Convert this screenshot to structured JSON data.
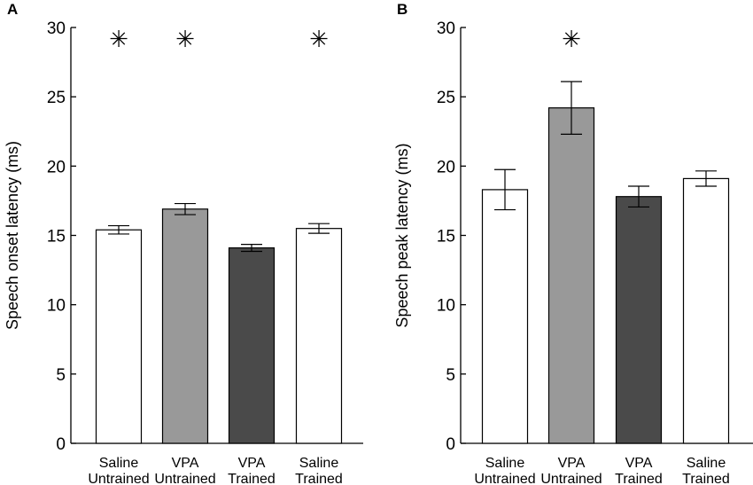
{
  "chart_data": [
    {
      "type": "bar",
      "panel_label": "A",
      "ylabel": "Speech onset latency (ms)",
      "ylim": [
        0,
        30
      ],
      "yticks": [
        "0",
        "5",
        "10",
        "15",
        "20",
        "25",
        "30"
      ],
      "categories": [
        {
          "line1": "Saline",
          "line2": "Untrained",
          "value": 15.4,
          "err": 0.3,
          "color": "#ffffff",
          "significant": true
        },
        {
          "line1": "VPA",
          "line2": "Untrained",
          "value": 16.9,
          "err": 0.4,
          "color": "#999999",
          "significant": true
        },
        {
          "line1": "VPA",
          "line2": "Trained",
          "value": 14.1,
          "err": 0.25,
          "color": "#4a4a4a",
          "significant": false
        },
        {
          "line1": "Saline",
          "line2": "Trained",
          "value": 15.5,
          "err": 0.35,
          "color": "#ffffff",
          "significant": true
        }
      ],
      "significance_marker": "✳"
    },
    {
      "type": "bar",
      "panel_label": "B",
      "ylabel": "Speech peak latency (ms)",
      "ylim": [
        0,
        30
      ],
      "yticks": [
        "0",
        "5",
        "10",
        "15",
        "20",
        "25",
        "30"
      ],
      "categories": [
        {
          "line1": "Saline",
          "line2": "Untrained",
          "value": 18.3,
          "err": 1.45,
          "color": "#ffffff",
          "significant": false
        },
        {
          "line1": "VPA",
          "line2": "Untrained",
          "value": 24.2,
          "err": 1.9,
          "color": "#999999",
          "significant": true
        },
        {
          "line1": "VPA",
          "line2": "Trained",
          "value": 17.8,
          "err": 0.75,
          "color": "#4a4a4a",
          "significant": false
        },
        {
          "line1": "Saline",
          "line2": "Trained",
          "value": 19.1,
          "err": 0.55,
          "color": "#ffffff",
          "significant": false
        }
      ],
      "significance_marker": "✳"
    }
  ]
}
